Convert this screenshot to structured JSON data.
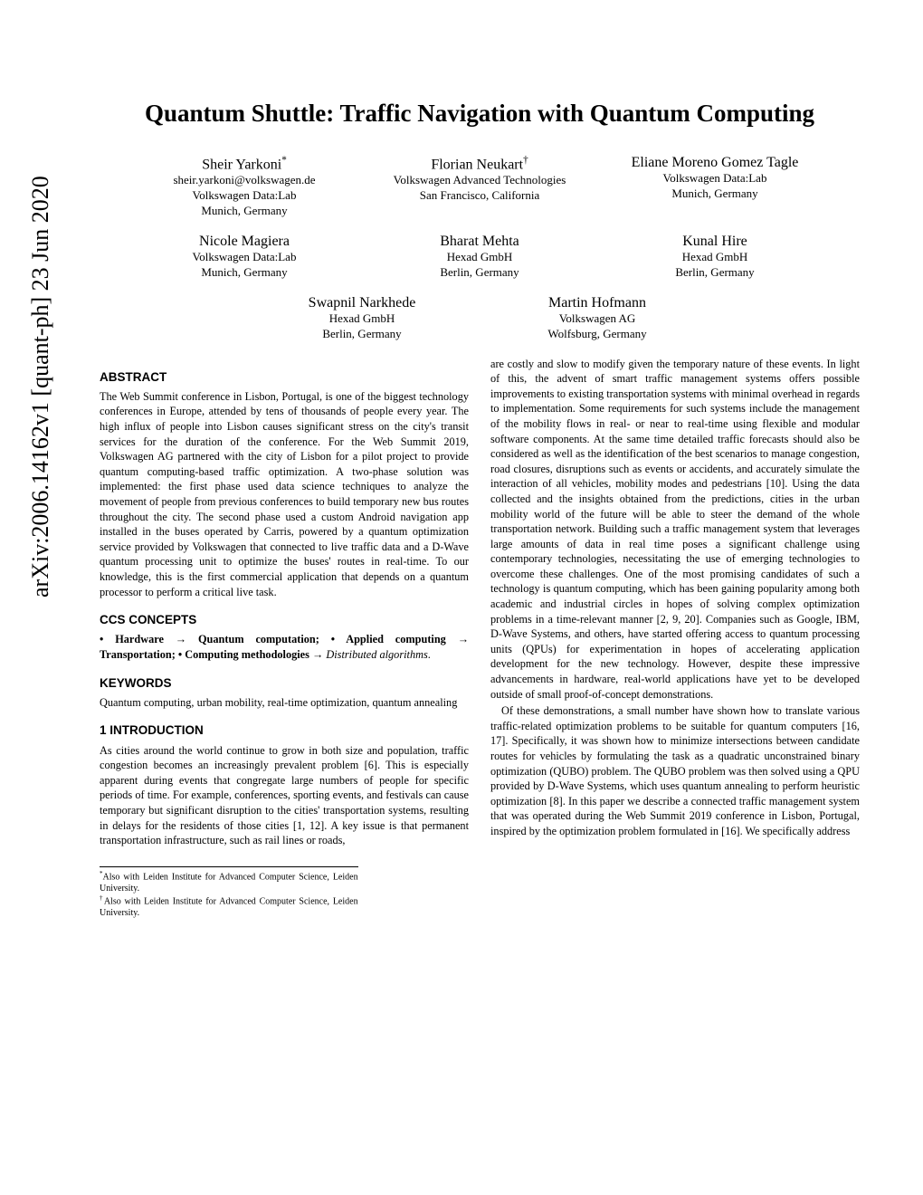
{
  "arxiv": "arXiv:2006.14162v1  [quant-ph]  23 Jun 2020",
  "title": "Quantum Shuttle: Traffic Navigation with Quantum Computing",
  "authors": [
    [
      {
        "name": "Sheir Yarkoni",
        "sup": "*",
        "lines": [
          "sheir.yarkoni@volkswagen.de",
          "Volkswagen Data:Lab",
          "Munich, Germany"
        ]
      },
      {
        "name": "Florian Neukart",
        "sup": "†",
        "lines": [
          "Volkswagen Advanced Technologies",
          "San Francisco, California"
        ]
      },
      {
        "name": "Eliane Moreno Gomez Tagle",
        "sup": "",
        "lines": [
          "Volkswagen Data:Lab",
          "Munich, Germany"
        ]
      }
    ],
    [
      {
        "name": "Nicole Magiera",
        "sup": "",
        "lines": [
          "Volkswagen Data:Lab",
          "Munich, Germany"
        ]
      },
      {
        "name": "Bharat Mehta",
        "sup": "",
        "lines": [
          "Hexad GmbH",
          "Berlin, Germany"
        ]
      },
      {
        "name": "Kunal Hire",
        "sup": "",
        "lines": [
          "Hexad GmbH",
          "Berlin, Germany"
        ]
      }
    ],
    [
      {
        "name": "Swapnil Narkhede",
        "sup": "",
        "lines": [
          "Hexad GmbH",
          "Berlin, Germany"
        ]
      },
      {
        "name": "Martin Hofmann",
        "sup": "",
        "lines": [
          "Volkswagen AG",
          "Wolfsburg, Germany"
        ]
      }
    ]
  ],
  "sections": {
    "abstract_h": "ABSTRACT",
    "abstract": "The Web Summit conference in Lisbon, Portugal, is one of the biggest technology conferences in Europe, attended by tens of thousands of people every year. The high influx of people into Lisbon causes significant stress on the city's transit services for the duration of the conference. For the Web Summit 2019, Volkswagen AG partnered with the city of Lisbon for a pilot project to provide quantum computing-based traffic optimization. A two-phase solution was implemented: the first phase used data science techniques to analyze the movement of people from previous conferences to build temporary new bus routes throughout the city. The second phase used a custom Android navigation app installed in the buses operated by Carris, powered by a quantum optimization service provided by Volkswagen that connected to live traffic data and a D-Wave quantum processing unit to optimize the buses' routes in real-time. To our knowledge, this is the first commercial application that depends on a quantum processor to perform a critical live task.",
    "ccs_h": "CCS CONCEPTS",
    "ccs_pre": "• Hardware → Quantum computation; • Applied computing → Transportation; • Computing methodologies → ",
    "ccs_italic": "Distributed algorithms",
    "ccs_post": ".",
    "keywords_h": "KEYWORDS",
    "keywords": "Quantum computing, urban mobility, real-time optimization, quantum annealing",
    "intro_h": "1   INTRODUCTION",
    "intro_p1": "As cities around the world continue to grow in both size and population, traffic congestion becomes an increasingly prevalent problem [6]. This is especially apparent during events that congregate large numbers of people for specific periods of time. For example, conferences, sporting events, and festivals can cause temporary but significant disruption to the cities' transportation systems, resulting in delays for the residents of those cities [1, 12]. A key issue is that permanent transportation infrastructure, such as rail lines or roads,",
    "col2_p1": "are costly and slow to modify given the temporary nature of these events. In light of this, the advent of smart traffic management systems offers possible improvements to existing transportation systems with minimal overhead in regards to implementation. Some requirements for such systems include the management of the mobility flows in real- or near to real-time using flexible and modular software components. At the same time detailed traffic forecasts should also be considered as well as the identification of the best scenarios to manage congestion, road closures, disruptions such as events or accidents, and accurately simulate the interaction of all vehicles, mobility modes and pedestrians [10]. Using the data collected and the insights obtained from the predictions, cities in the urban mobility world of the future will be able to steer the demand of the whole transportation network. Building such a traffic management system that leverages large amounts of data in real time poses a significant challenge using contemporary technologies, necessitating the use of emerging technologies to overcome these challenges. One of the most promising candidates of such a technology is quantum computing, which has been gaining popularity among both academic and industrial circles in hopes of solving complex optimization problems in a time-relevant manner [2, 9, 20]. Companies such as Google, IBM, D-Wave Systems, and others, have started offering access to quantum processing units (QPUs) for experimentation in hopes of accelerating application development for the new technology. However, despite these impressive advancements in hardware, real-world applications have yet to be developed outside of small proof-of-concept demonstrations.",
    "col2_p2": "Of these demonstrations, a small number have shown how to translate various traffic-related optimization problems to be suitable for quantum computers [16, 17]. Specifically, it was shown how to minimize intersections between candidate routes for vehicles by formulating the task as a quadratic unconstrained binary optimization (QUBO) problem. The QUBO problem was then solved using a QPU provided by D-Wave Systems, which uses quantum annealing to perform heuristic optimization [8]. In this paper we describe a connected traffic management system that was operated during the Web Summit 2019 conference in Lisbon, Portugal, inspired by the optimization problem formulated in [16]. We specifically address"
  },
  "footnotes": {
    "f1_mark": "*",
    "f1": "Also with Leiden Institute for Advanced Computer Science, Leiden University.",
    "f2_mark": "†",
    "f2": "Also with Leiden Institute for Advanced Computer Science, Leiden University."
  }
}
